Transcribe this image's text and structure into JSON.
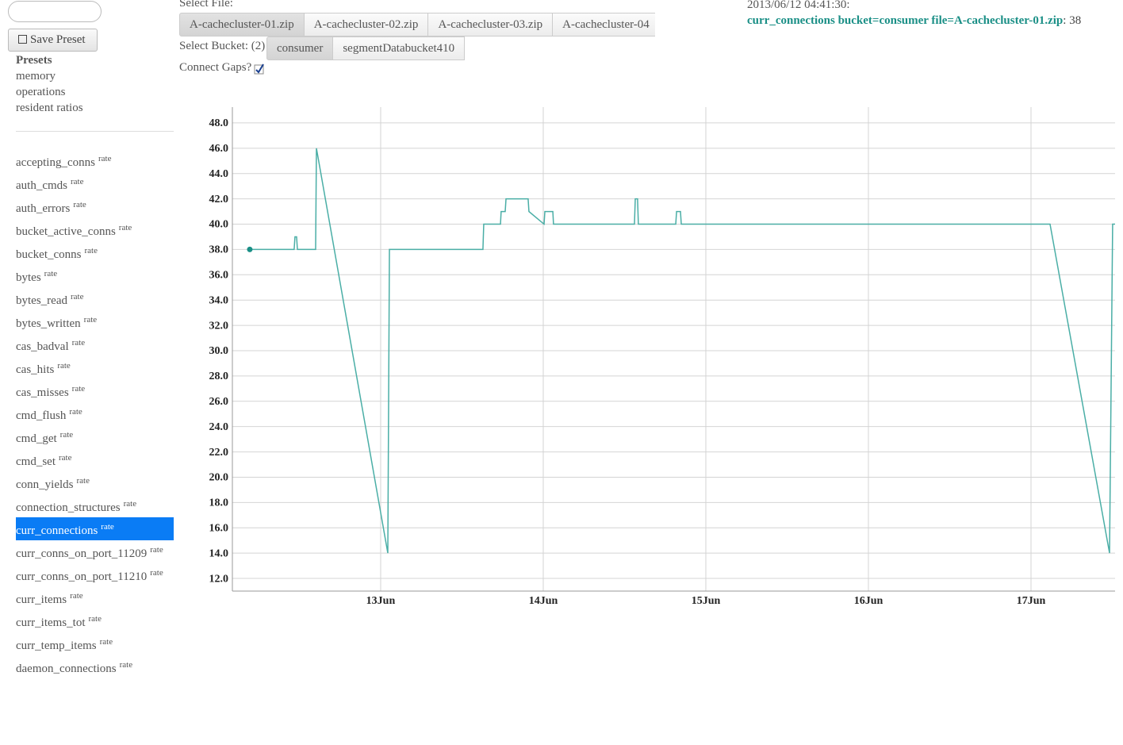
{
  "sidebar": {
    "save_button": "Save Preset",
    "presets_title": "Presets",
    "presets": [
      "memory",
      "operations",
      "resident ratios"
    ],
    "metrics": [
      {
        "name": "accepting_conns",
        "tag": "rate"
      },
      {
        "name": "auth_cmds",
        "tag": "rate"
      },
      {
        "name": "auth_errors",
        "tag": "rate"
      },
      {
        "name": "bucket_active_conns",
        "tag": "rate"
      },
      {
        "name": "bucket_conns",
        "tag": "rate"
      },
      {
        "name": "bytes",
        "tag": "rate"
      },
      {
        "name": "bytes_read",
        "tag": "rate"
      },
      {
        "name": "bytes_written",
        "tag": "rate"
      },
      {
        "name": "cas_badval",
        "tag": "rate"
      },
      {
        "name": "cas_hits",
        "tag": "rate"
      },
      {
        "name": "cas_misses",
        "tag": "rate"
      },
      {
        "name": "cmd_flush",
        "tag": "rate"
      },
      {
        "name": "cmd_get",
        "tag": "rate"
      },
      {
        "name": "cmd_set",
        "tag": "rate"
      },
      {
        "name": "conn_yields",
        "tag": "rate"
      },
      {
        "name": "connection_structures",
        "tag": "rate"
      },
      {
        "name": "curr_connections",
        "tag": "rate",
        "selected": true
      },
      {
        "name": "curr_conns_on_port_11209",
        "tag": "rate"
      },
      {
        "name": "curr_conns_on_port_11210",
        "tag": "rate"
      },
      {
        "name": "curr_items",
        "tag": "rate"
      },
      {
        "name": "curr_items_tot",
        "tag": "rate"
      },
      {
        "name": "curr_temp_items",
        "tag": "rate"
      },
      {
        "name": "daemon_connections",
        "tag": "rate"
      }
    ]
  },
  "file_select": {
    "label": "Select File:",
    "files": [
      "A-cachecluster-01.zip",
      "A-cachecluster-02.zip",
      "A-cachecluster-03.zip",
      "A-cachecluster-04"
    ],
    "active": 0
  },
  "bucket_select": {
    "label": "Select Bucket: (2)",
    "buckets": [
      "consumer",
      "segmentDatabucket410"
    ],
    "active": 0
  },
  "connect_gaps": {
    "label": "Connect Gaps?",
    "checked": true
  },
  "readout": {
    "time": "2013/06/12 04:41:30:",
    "series": "curr_connections bucket=consumer file=A-cachecluster-01.zip",
    "value": ": 38"
  },
  "chart_data": {
    "type": "line",
    "color": "#4aaea6",
    "grid": true,
    "x": [
      12.195,
      12.468,
      12.473,
      12.483,
      12.488,
      12.6,
      12.605,
      13.044,
      13.054,
      13.629,
      13.634,
      13.737,
      13.741,
      13.766,
      13.771,
      13.907,
      13.912,
      14.005,
      14.01,
      14.059,
      14.063,
      14.561,
      14.566,
      14.58,
      14.585,
      14.815,
      14.82,
      14.844,
      14.849,
      17.117,
      17.483,
      17.502,
      17.517
    ],
    "values": [
      38,
      38,
      39,
      39,
      38,
      38,
      46,
      14,
      38,
      38,
      40,
      40,
      41,
      41,
      42,
      42,
      41,
      40,
      41,
      41,
      40,
      40,
      42,
      42,
      40,
      40,
      41,
      41,
      40,
      40,
      14,
      40,
      40
    ],
    "xlim": [
      12.088,
      17.517
    ],
    "xticks": [
      {
        "value": 13,
        "label": "13Jun"
      },
      {
        "value": 14,
        "label": "14Jun"
      },
      {
        "value": 15,
        "label": "15Jun"
      },
      {
        "value": 16,
        "label": "16Jun"
      },
      {
        "value": 17,
        "label": "17Jun"
      }
    ],
    "ylim": [
      11,
      49.25
    ],
    "yticks": [
      {
        "value": 12,
        "label": "12.0"
      },
      {
        "value": 14,
        "label": "14.0"
      },
      {
        "value": 16,
        "label": "16.0"
      },
      {
        "value": 18,
        "label": "18.0"
      },
      {
        "value": 20,
        "label": "20.0"
      },
      {
        "value": 22,
        "label": "22.0"
      },
      {
        "value": 24,
        "label": "24.0"
      },
      {
        "value": 26,
        "label": "26.0"
      },
      {
        "value": 28,
        "label": "28.0"
      },
      {
        "value": 30,
        "label": "30.0"
      },
      {
        "value": 32,
        "label": "32.0"
      },
      {
        "value": 34,
        "label": "34.0"
      },
      {
        "value": 36,
        "label": "36.0"
      },
      {
        "value": 38,
        "label": "38.0"
      },
      {
        "value": 40,
        "label": "40.0"
      },
      {
        "value": 42,
        "label": "42.0"
      },
      {
        "value": 44,
        "label": "44.0"
      },
      {
        "value": 46,
        "label": "46.0"
      },
      {
        "value": 48,
        "label": "48.0"
      }
    ]
  }
}
